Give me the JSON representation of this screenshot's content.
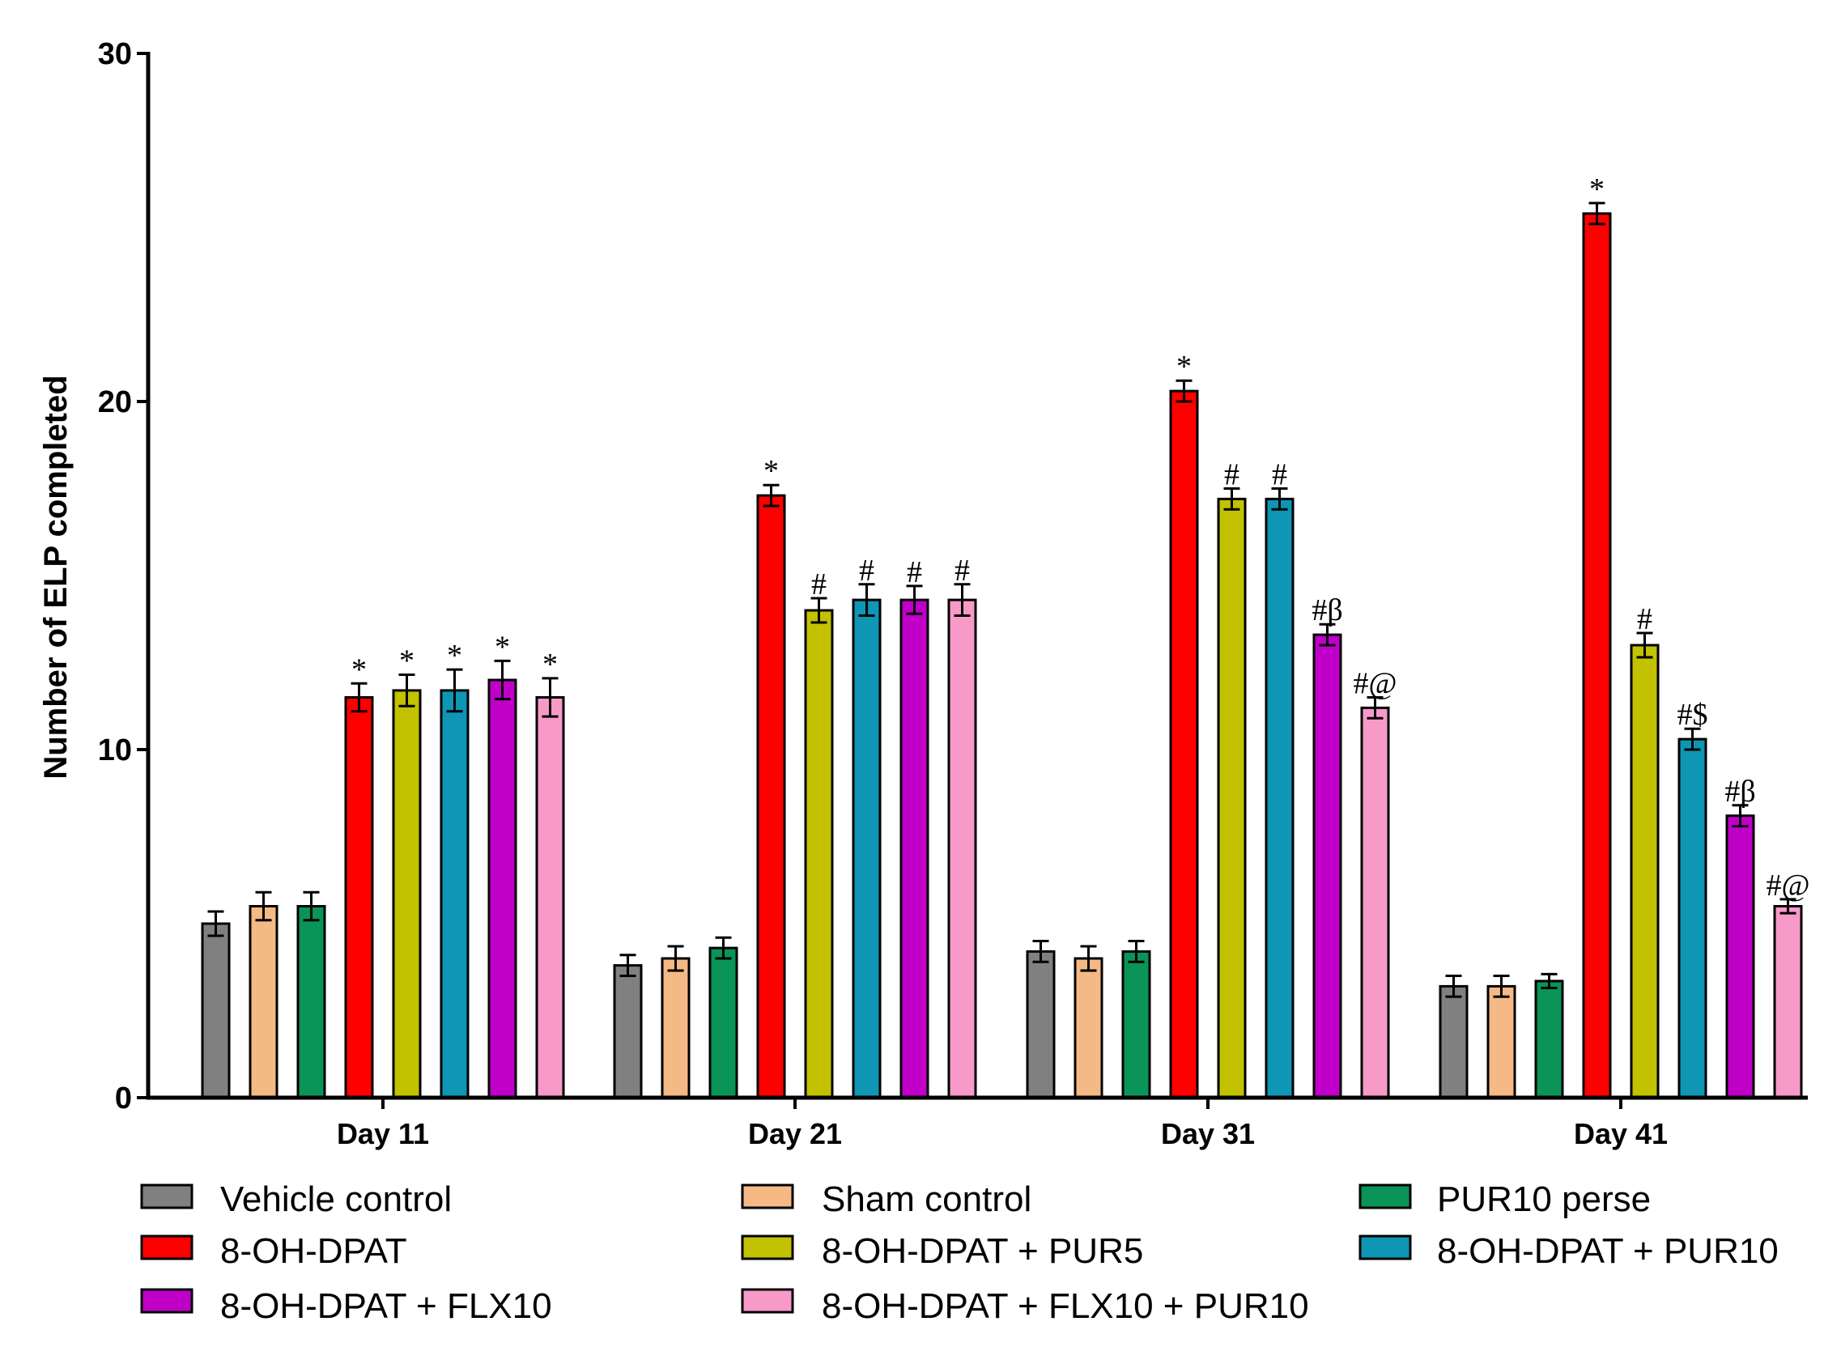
{
  "chart_data": {
    "type": "bar",
    "title": "",
    "xlabel": "",
    "ylabel": "Number of ELP completed",
    "ylim": [
      0,
      30
    ],
    "yticks": [
      "0",
      "10",
      "20",
      "30"
    ],
    "grid": false,
    "legend_position": "bottom",
    "categories": [
      "Day 11",
      "Day 21",
      "Day 31",
      "Day 41"
    ],
    "series": [
      {
        "name": "Vehicle control",
        "color": "#808080",
        "values": [
          5.0,
          3.8,
          4.2,
          3.2
        ],
        "errors": [
          0.35,
          0.3,
          0.3,
          0.3
        ],
        "annotations": [
          "",
          "",
          "",
          ""
        ]
      },
      {
        "name": "Sham control",
        "color": "#f4b984",
        "values": [
          5.5,
          4.0,
          4.0,
          3.2
        ],
        "errors": [
          0.4,
          0.35,
          0.35,
          0.3
        ],
        "annotations": [
          "",
          "",
          "",
          ""
        ]
      },
      {
        "name": "PUR10 perse",
        "color": "#0a9457",
        "values": [
          5.5,
          4.3,
          4.2,
          3.35
        ],
        "errors": [
          0.4,
          0.3,
          0.3,
          0.2
        ],
        "annotations": [
          "",
          "",
          "",
          ""
        ]
      },
      {
        "name": "8-OH-DPAT",
        "color": "#ff0000",
        "values": [
          11.5,
          17.3,
          20.3,
          25.4
        ],
        "errors": [
          0.4,
          0.3,
          0.3,
          0.3
        ],
        "annotations": [
          "*",
          "*",
          "*",
          "*"
        ]
      },
      {
        "name": "8-OH-DPAT + PUR5",
        "color": "#c2c200",
        "values": [
          11.7,
          14.0,
          17.2,
          13.0
        ],
        "errors": [
          0.45,
          0.35,
          0.3,
          0.35
        ],
        "annotations": [
          "*",
          "#",
          "#",
          "#"
        ]
      },
      {
        "name": "8-OH-DPAT + PUR10",
        "color": "#0e96b4",
        "values": [
          11.7,
          14.3,
          17.2,
          10.3
        ],
        "errors": [
          0.6,
          0.45,
          0.3,
          0.3
        ],
        "annotations": [
          "*",
          "#",
          "#",
          "#$"
        ]
      },
      {
        "name": "8-OH-DPAT + FLX10",
        "color": "#c000c8",
        "values": [
          12.0,
          14.3,
          13.3,
          8.1
        ],
        "errors": [
          0.55,
          0.4,
          0.3,
          0.3
        ],
        "annotations": [
          "*",
          "#",
          "#β",
          "#β"
        ]
      },
      {
        "name": "8-OH-DPAT + FLX10 + PUR10",
        "color": "#f79ac8",
        "values": [
          11.5,
          14.3,
          11.2,
          5.5
        ],
        "errors": [
          0.55,
          0.45,
          0.3,
          0.2
        ],
        "annotations": [
          "*",
          "#",
          "#@",
          "#@"
        ]
      }
    ],
    "legend": [
      {
        "label": "Vehicle control",
        "color": "#808080"
      },
      {
        "label": "Sham control",
        "color": "#f4b984"
      },
      {
        "label": "PUR10 perse",
        "color": "#0a9457"
      },
      {
        "label": "8-OH-DPAT",
        "color": "#ff0000"
      },
      {
        "label": "8-OH-DPAT + PUR5",
        "color": "#c2c200"
      },
      {
        "label": "8-OH-DPAT + PUR10",
        "color": "#0e96b4"
      },
      {
        "label": "8-OH-DPAT + FLX10",
        "color": "#c000c8"
      },
      {
        "label": "8-OH-DPAT + FLX10 + PUR10",
        "color": "#f79ac8"
      }
    ]
  }
}
